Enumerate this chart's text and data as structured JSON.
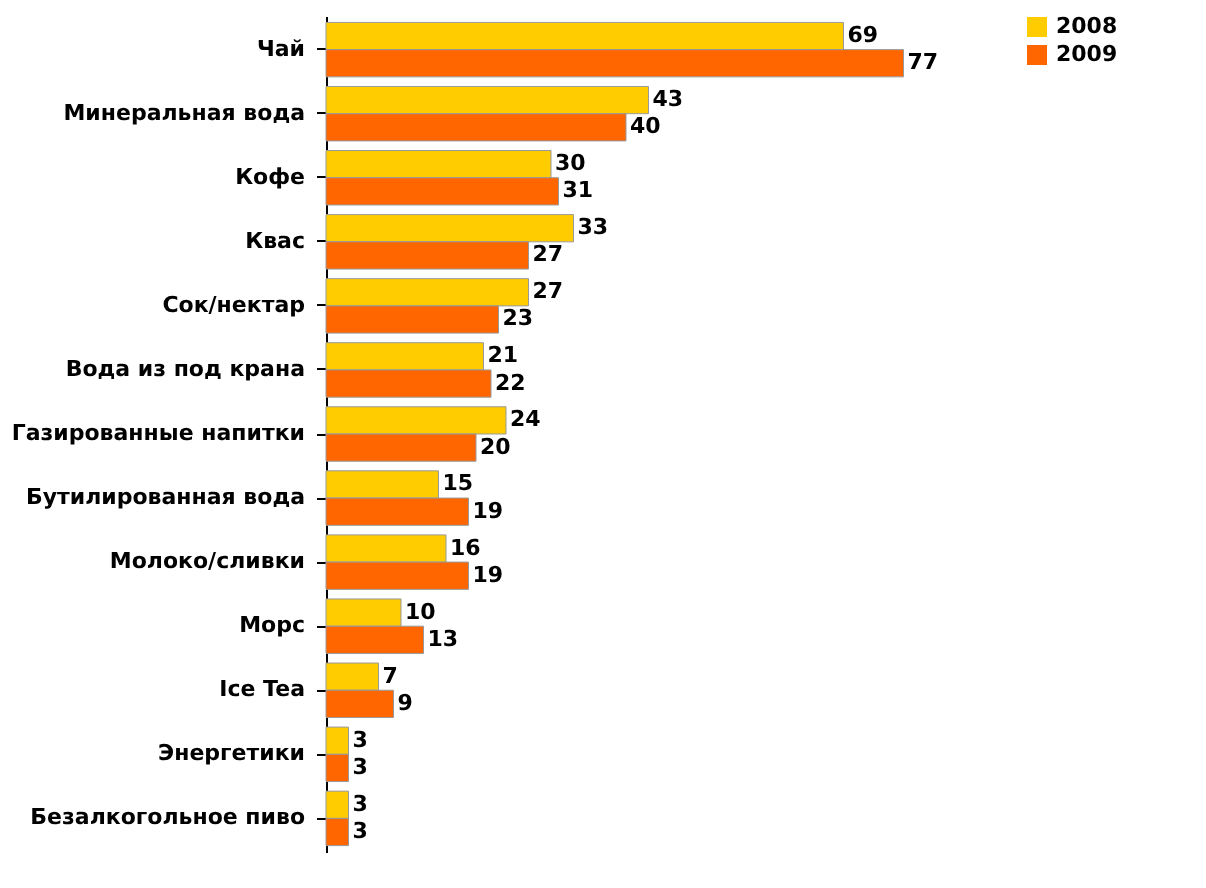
{
  "chart_data": {
    "type": "bar",
    "orientation": "horizontal",
    "categories": [
      "Чай",
      "Минеральная вода",
      "Кофе",
      "Квас",
      "Сок/нектар",
      "Вода из под крана",
      "Газированные напитки",
      "Бутилированная вода",
      "Молоко/сливки",
      "Морс",
      "Ice Tea",
      "Энергетики",
      "Безалкогольное пиво"
    ],
    "series": [
      {
        "name": "2008",
        "color": "#ffcc00",
        "values": [
          69,
          43,
          30,
          33,
          27,
          21,
          24,
          15,
          16,
          10,
          7,
          3,
          3
        ]
      },
      {
        "name": "2009",
        "color": "#ff6600",
        "values": [
          77,
          40,
          31,
          27,
          23,
          22,
          20,
          19,
          19,
          13,
          9,
          3,
          3
        ]
      }
    ],
    "data_labels": true,
    "legend": "right"
  }
}
